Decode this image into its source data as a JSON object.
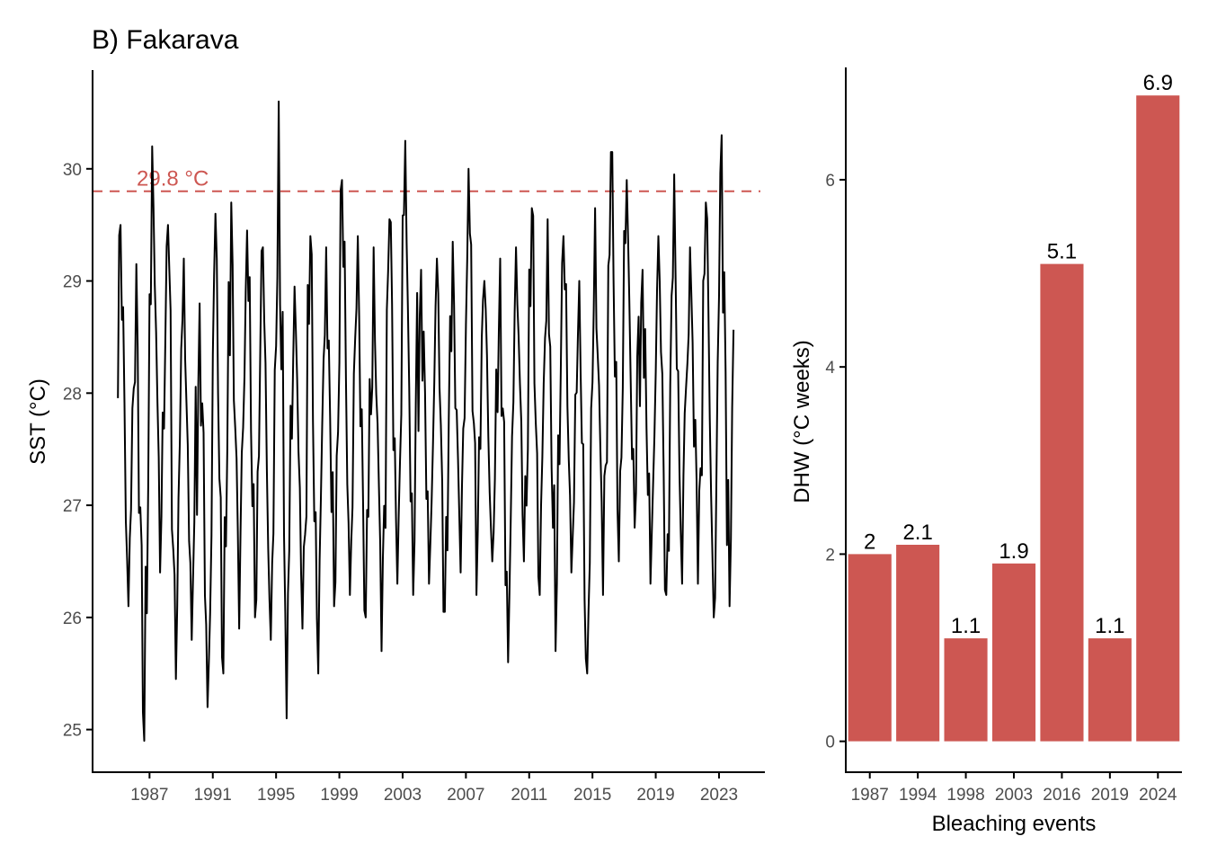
{
  "title": "B) Fakarava",
  "colors": {
    "bar": "#cd5752",
    "threshold": "#cd5752",
    "line": "#000000",
    "axis": "#000000",
    "tick_text": "#4d4d4d"
  },
  "chart_data": [
    {
      "type": "line",
      "ylabel": "SST (°C)",
      "xlabel": "",
      "xlim": [
        1983.4,
        2025.9
      ],
      "ylim": [
        24.62,
        30.88
      ],
      "yticks": [
        25,
        26,
        27,
        28,
        29,
        30
      ],
      "xticks": [
        1987,
        1991,
        1995,
        1999,
        2003,
        2007,
        2011,
        2015,
        2019,
        2023
      ],
      "threshold": {
        "value": 29.8,
        "label": "29.8 °C"
      },
      "grid": false,
      "series": [
        {
          "resolution": "monthly, Jan 1985 – Dec 2023",
          "x_start": 1985.0,
          "x_end": 2023.92,
          "maxima": [
            {
              "year": 1985,
              "value": 29.5
            },
            {
              "year": 1986,
              "value": 29.15
            },
            {
              "year": 1987,
              "value": 30.2
            },
            {
              "year": 1988,
              "value": 29.5
            },
            {
              "year": 1989,
              "value": 29.2
            },
            {
              "year": 1990,
              "value": 28.8
            },
            {
              "year": 1991,
              "value": 29.6
            },
            {
              "year": 1992,
              "value": 29.7
            },
            {
              "year": 1993,
              "value": 29.45
            },
            {
              "year": 1994,
              "value": 29.3
            },
            {
              "year": 1995,
              "value": 30.6
            },
            {
              "year": 1996,
              "value": 28.95
            },
            {
              "year": 1997,
              "value": 29.4
            },
            {
              "year": 1998,
              "value": 29.3
            },
            {
              "year": 1999,
              "value": 29.9
            },
            {
              "year": 2000,
              "value": 29.4
            },
            {
              "year": 2001,
              "value": 29.3
            },
            {
              "year": 2002,
              "value": 29.55
            },
            {
              "year": 2003,
              "value": 30.25
            },
            {
              "year": 2004,
              "value": 29.1
            },
            {
              "year": 2005,
              "value": 29.2
            },
            {
              "year": 2006,
              "value": 29.35
            },
            {
              "year": 2007,
              "value": 30.0
            },
            {
              "year": 2008,
              "value": 29.0
            },
            {
              "year": 2009,
              "value": 29.2
            },
            {
              "year": 2010,
              "value": 29.3
            },
            {
              "year": 2011,
              "value": 29.65
            },
            {
              "year": 2012,
              "value": 29.55
            },
            {
              "year": 2013,
              "value": 29.4
            },
            {
              "year": 2014,
              "value": 29.0
            },
            {
              "year": 2015,
              "value": 29.65
            },
            {
              "year": 2016,
              "value": 30.15
            },
            {
              "year": 2017,
              "value": 29.9
            },
            {
              "year": 2018,
              "value": 29.1
            },
            {
              "year": 2019,
              "value": 29.4
            },
            {
              "year": 2020,
              "value": 29.95
            },
            {
              "year": 2021,
              "value": 29.3
            },
            {
              "year": 2022,
              "value": 29.7
            },
            {
              "year": 2023,
              "value": 30.3
            }
          ],
          "minima": [
            {
              "year": 1985,
              "value": 26.1
            },
            {
              "year": 1986,
              "value": 24.9
            },
            {
              "year": 1987,
              "value": 26.4
            },
            {
              "year": 1988,
              "value": 25.45
            },
            {
              "year": 1989,
              "value": 25.8
            },
            {
              "year": 1990,
              "value": 25.2
            },
            {
              "year": 1991,
              "value": 25.5
            },
            {
              "year": 1992,
              "value": 25.9
            },
            {
              "year": 1993,
              "value": 26.0
            },
            {
              "year": 1994,
              "value": 25.8
            },
            {
              "year": 1995,
              "value": 25.1
            },
            {
              "year": 1996,
              "value": 25.9
            },
            {
              "year": 1997,
              "value": 25.5
            },
            {
              "year": 1998,
              "value": 26.1
            },
            {
              "year": 1999,
              "value": 26.2
            },
            {
              "year": 2000,
              "value": 26.0
            },
            {
              "year": 2001,
              "value": 25.7
            },
            {
              "year": 2002,
              "value": 26.3
            },
            {
              "year": 2003,
              "value": 26.2
            },
            {
              "year": 2004,
              "value": 26.3
            },
            {
              "year": 2005,
              "value": 26.05
            },
            {
              "year": 2006,
              "value": 26.4
            },
            {
              "year": 2007,
              "value": 26.2
            },
            {
              "year": 2008,
              "value": 26.5
            },
            {
              "year": 2009,
              "value": 25.6
            },
            {
              "year": 2010,
              "value": 26.5
            },
            {
              "year": 2011,
              "value": 26.2
            },
            {
              "year": 2012,
              "value": 25.7
            },
            {
              "year": 2013,
              "value": 26.4
            },
            {
              "year": 2014,
              "value": 25.5
            },
            {
              "year": 2015,
              "value": 26.2
            },
            {
              "year": 2016,
              "value": 26.5
            },
            {
              "year": 2017,
              "value": 26.8
            },
            {
              "year": 2018,
              "value": 26.3
            },
            {
              "year": 2019,
              "value": 26.2
            },
            {
              "year": 2020,
              "value": 26.3
            },
            {
              "year": 2021,
              "value": 26.3
            },
            {
              "year": 2022,
              "value": 26.0
            },
            {
              "year": 2023,
              "value": 26.1
            }
          ]
        }
      ]
    },
    {
      "type": "bar",
      "categories": [
        "1987",
        "1994",
        "1998",
        "2003",
        "2016",
        "2019",
        "2024"
      ],
      "values": [
        2.0,
        2.1,
        1.1,
        1.9,
        5.1,
        1.1,
        6.9
      ],
      "labels": [
        "2",
        "2.1",
        "1.1",
        "1.9",
        "5.1",
        "1.1",
        "6.9"
      ],
      "xlabel": "Bleaching events",
      "ylabel": "DHW (°C weeks)",
      "ylim": [
        -0.33,
        7.2
      ],
      "yticks": [
        0,
        2,
        4,
        6
      ],
      "grid": false
    }
  ]
}
